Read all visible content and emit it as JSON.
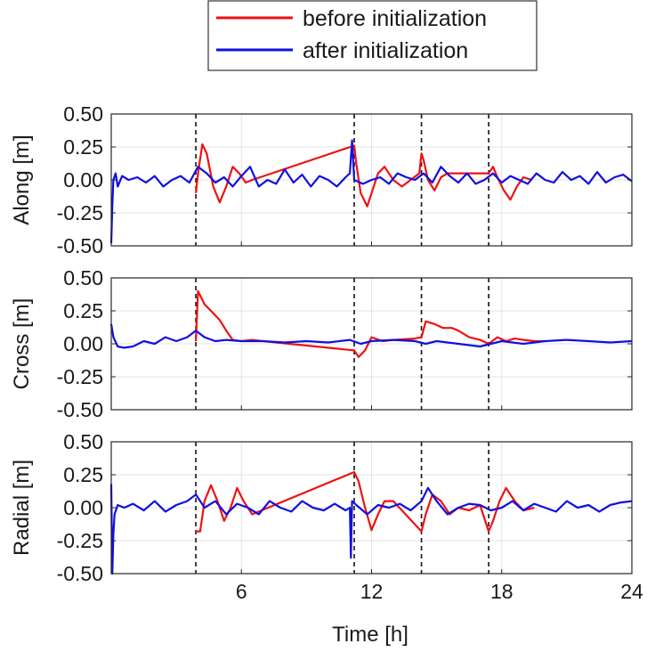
{
  "legend": {
    "entries": [
      {
        "label": "before initialization",
        "color": "#ee1111"
      },
      {
        "label": "after initialization",
        "color": "#1010e0"
      }
    ],
    "placement": "top-center"
  },
  "chart_data": [
    {
      "type": "line",
      "ylabel": "Along [m]",
      "xlabel": "",
      "xlim": [
        0,
        24
      ],
      "ylim": [
        -0.5,
        0.5
      ],
      "yticks": [
        "0.50",
        "0.25",
        "0.00",
        "-0.25",
        "-0.50"
      ],
      "xticks": [],
      "grid": true,
      "vlines": [
        3.9,
        11.2,
        14.3,
        17.4
      ],
      "series": [
        {
          "name": "before initialization",
          "color": "#ee1111",
          "x": [
            3.9,
            4.0,
            4.2,
            4.4,
            4.7,
            5.0,
            5.3,
            5.6,
            5.9,
            6.2,
            6.5,
            11.2,
            11.3,
            11.5,
            11.8,
            12.0,
            12.3,
            12.6,
            13.0,
            13.4,
            13.8,
            14.2,
            14.3,
            14.4,
            14.6,
            14.9,
            15.2,
            15.5,
            17.4,
            17.6,
            17.8,
            18.1,
            18.4,
            18.7,
            19.0,
            19.4
          ],
          "y": [
            -0.1,
            0.05,
            0.27,
            0.2,
            -0.05,
            -0.17,
            -0.05,
            0.1,
            0.05,
            -0.02,
            0.0,
            0.26,
            0.12,
            -0.1,
            -0.2,
            -0.1,
            0.05,
            0.1,
            0.0,
            -0.05,
            0.0,
            0.05,
            0.2,
            0.15,
            0.0,
            -0.08,
            0.02,
            0.05,
            0.05,
            0.1,
            0.02,
            -0.08,
            -0.15,
            -0.05,
            0.02,
            0.0
          ]
        },
        {
          "name": "after initialization",
          "color": "#1010e0",
          "x": [
            0.0,
            0.05,
            0.1,
            0.2,
            0.3,
            0.5,
            0.8,
            1.2,
            1.6,
            2.0,
            2.4,
            2.8,
            3.2,
            3.6,
            4.0,
            4.4,
            4.8,
            5.2,
            5.6,
            6.0,
            6.4,
            6.8,
            7.2,
            7.6,
            8.0,
            8.4,
            8.8,
            9.2,
            9.6,
            10.0,
            10.4,
            10.8,
            11.0,
            11.1,
            11.2,
            11.6,
            12.0,
            12.4,
            12.8,
            13.2,
            13.6,
            14.0,
            14.4,
            14.8,
            15.2,
            15.6,
            16.0,
            16.4,
            16.8,
            17.2,
            17.6,
            18.0,
            18.4,
            18.8,
            19.2,
            19.6,
            20.0,
            20.4,
            20.8,
            21.2,
            21.6,
            22.0,
            22.4,
            22.8,
            23.2,
            23.6,
            24.0
          ],
          "y": [
            -0.48,
            -0.2,
            0.0,
            0.05,
            -0.05,
            0.03,
            0.0,
            0.02,
            -0.02,
            0.03,
            -0.05,
            0.0,
            0.03,
            -0.02,
            0.1,
            0.05,
            -0.02,
            0.02,
            -0.05,
            0.03,
            0.1,
            -0.05,
            0.0,
            -0.03,
            0.08,
            -0.02,
            0.04,
            -0.05,
            0.03,
            0.0,
            -0.05,
            0.02,
            0.05,
            0.3,
            0.0,
            -0.03,
            0.0,
            0.02,
            -0.03,
            0.05,
            0.02,
            0.0,
            0.05,
            -0.02,
            0.1,
            0.03,
            -0.02,
            0.05,
            -0.03,
            0.0,
            0.05,
            -0.02,
            0.03,
            0.0,
            -0.03,
            0.05,
            0.0,
            -0.02,
            0.06,
            0.0,
            0.03,
            -0.03,
            0.06,
            -0.02,
            0.02,
            0.04,
            -0.01
          ]
        }
      ]
    },
    {
      "type": "line",
      "ylabel": "Cross [m]",
      "xlabel": "",
      "xlim": [
        0,
        24
      ],
      "ylim": [
        -0.5,
        0.5
      ],
      "yticks": [
        "0.50",
        "0.25",
        "0.00",
        "-0.25",
        "-0.50"
      ],
      "xticks": [],
      "grid": true,
      "vlines": [
        3.9,
        11.2,
        14.3,
        17.4
      ],
      "series": [
        {
          "name": "before initialization",
          "color": "#ee1111",
          "x": [
            3.9,
            4.0,
            4.3,
            4.6,
            5.0,
            5.3,
            5.6,
            6.0,
            6.5,
            7.0,
            11.2,
            11.4,
            11.7,
            12.0,
            12.5,
            13.0,
            14.0,
            14.3,
            14.5,
            14.9,
            15.3,
            15.7,
            16.0,
            16.5,
            17.0,
            17.4,
            17.8,
            18.2,
            18.6,
            19.0,
            19.5,
            20.0
          ],
          "y": [
            0.02,
            0.4,
            0.3,
            0.25,
            0.18,
            0.1,
            0.03,
            0.02,
            0.03,
            0.02,
            -0.05,
            -0.1,
            -0.05,
            0.05,
            0.02,
            0.03,
            0.04,
            0.05,
            0.17,
            0.15,
            0.12,
            0.12,
            0.1,
            0.05,
            0.03,
            0.0,
            0.05,
            0.02,
            0.04,
            0.03,
            0.02,
            0.02
          ]
        },
        {
          "name": "after initialization",
          "color": "#1010e0",
          "x": [
            0.0,
            0.1,
            0.3,
            0.6,
            1.0,
            1.5,
            2.0,
            2.5,
            3.0,
            3.5,
            3.9,
            4.3,
            4.8,
            5.3,
            6.0,
            7.0,
            8.0,
            9.0,
            10.0,
            11.0,
            11.5,
            12.0,
            13.0,
            14.0,
            14.5,
            15.0,
            16.0,
            17.0,
            17.5,
            18.0,
            19.0,
            20.0,
            21.0,
            22.0,
            23.0,
            24.0
          ],
          "y": [
            0.15,
            0.05,
            -0.02,
            -0.03,
            -0.02,
            0.02,
            0.0,
            0.05,
            0.02,
            0.05,
            0.1,
            0.05,
            0.02,
            0.03,
            0.02,
            0.02,
            0.01,
            0.02,
            0.01,
            0.03,
            0.0,
            0.02,
            0.03,
            0.02,
            0.0,
            0.02,
            0.0,
            -0.02,
            0.0,
            0.02,
            0.0,
            0.02,
            0.03,
            0.02,
            0.01,
            0.02
          ]
        }
      ]
    },
    {
      "type": "line",
      "ylabel": "Radial [m]",
      "xlabel": "Time [h]",
      "xlim": [
        0,
        24
      ],
      "ylim": [
        -0.5,
        0.5
      ],
      "yticks": [
        "0.50",
        "0.25",
        "0.00",
        "-0.25",
        "-0.50"
      ],
      "xticks": [
        "6",
        "12",
        "18",
        "24"
      ],
      "xtick_values": [
        6,
        12,
        18,
        24
      ],
      "grid": true,
      "vlines": [
        3.9,
        11.2,
        14.3,
        17.4
      ],
      "series": [
        {
          "name": "before initialization",
          "color": "#ee1111",
          "x": [
            3.9,
            4.1,
            4.3,
            4.6,
            4.9,
            5.2,
            5.5,
            5.8,
            6.1,
            6.5,
            11.2,
            11.4,
            11.7,
            12.0,
            12.3,
            12.6,
            13.0,
            13.4,
            14.3,
            14.5,
            14.8,
            15.2,
            15.6,
            16.0,
            16.5,
            17.0,
            17.4,
            17.6,
            17.9,
            18.2,
            18.6,
            19.0,
            19.5
          ],
          "y": [
            -0.18,
            -0.18,
            0.05,
            0.17,
            0.05,
            -0.1,
            0.0,
            0.15,
            0.05,
            -0.05,
            0.27,
            0.2,
            0.0,
            -0.17,
            -0.05,
            0.05,
            0.05,
            -0.02,
            -0.18,
            -0.05,
            0.1,
            0.05,
            -0.05,
            0.0,
            -0.02,
            0.02,
            -0.18,
            -0.1,
            0.05,
            0.15,
            0.05,
            -0.02,
            0.0
          ]
        },
        {
          "name": "after initialization",
          "color": "#1010e0",
          "x": [
            0.0,
            0.05,
            0.1,
            0.15,
            0.3,
            0.6,
            1.0,
            1.5,
            2.0,
            2.5,
            3.0,
            3.5,
            3.9,
            4.3,
            4.8,
            5.3,
            5.8,
            6.3,
            6.8,
            7.3,
            7.8,
            8.3,
            8.8,
            9.3,
            9.8,
            10.3,
            10.8,
            11.0,
            11.05,
            11.1,
            11.3,
            11.8,
            12.3,
            12.8,
            13.3,
            13.8,
            14.3,
            14.6,
            15.0,
            15.5,
            16.0,
            16.5,
            17.0,
            17.5,
            18.0,
            18.5,
            19.0,
            19.5,
            20.0,
            20.5,
            21.0,
            21.5,
            22.0,
            22.5,
            23.0,
            23.5,
            24.0
          ],
          "y": [
            0.18,
            -0.5,
            -0.2,
            -0.05,
            0.02,
            0.0,
            0.03,
            -0.02,
            0.05,
            -0.03,
            0.02,
            0.05,
            0.1,
            0.0,
            0.05,
            -0.05,
            0.03,
            0.0,
            -0.05,
            0.05,
            0.0,
            -0.03,
            0.05,
            0.0,
            -0.02,
            0.03,
            -0.02,
            0.0,
            -0.38,
            0.05,
            0.02,
            -0.05,
            0.02,
            0.0,
            0.03,
            -0.02,
            0.05,
            0.15,
            0.05,
            -0.05,
            0.0,
            0.03,
            0.02,
            -0.02,
            0.0,
            0.05,
            -0.02,
            0.03,
            0.0,
            -0.03,
            0.05,
            0.0,
            0.02,
            -0.03,
            0.02,
            0.04,
            0.05
          ]
        }
      ]
    }
  ]
}
